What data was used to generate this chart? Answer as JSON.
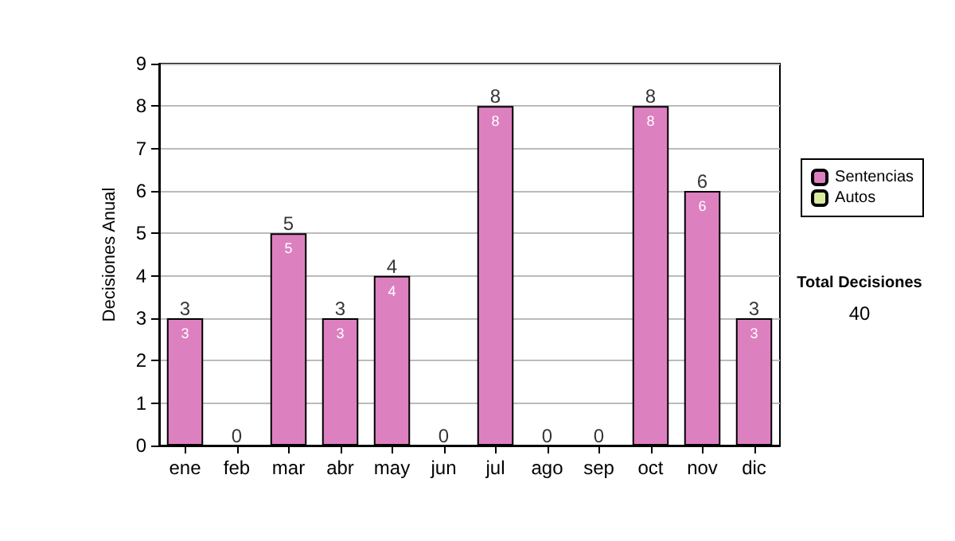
{
  "chart_data": {
    "type": "bar",
    "ylabel": "Decisiones Anual",
    "categories": [
      "ene",
      "feb",
      "mar",
      "abr",
      "may",
      "jun",
      "jul",
      "ago",
      "sep",
      "oct",
      "nov",
      "dic"
    ],
    "series": [
      {
        "name": "Sentencias",
        "color": "#dd80c0",
        "values": [
          3,
          0,
          5,
          3,
          4,
          0,
          8,
          0,
          0,
          8,
          6,
          3
        ],
        "value_labels": [
          "3",
          null,
          "5",
          "3",
          "4",
          null,
          "8",
          null,
          null,
          "8",
          "6",
          "3"
        ]
      },
      {
        "name": "Autos",
        "color": "#d8eca0",
        "values": [
          0,
          0,
          0,
          0,
          0,
          0,
          0,
          0,
          0,
          0,
          0,
          0
        ]
      }
    ],
    "stacked": true,
    "totals": [
      "3",
      "0",
      "5",
      "3",
      "4",
      "0",
      "8",
      "0",
      "0",
      "8",
      "6",
      "3"
    ],
    "ylim": [
      0,
      9
    ],
    "yticks": [
      0,
      1,
      2,
      3,
      4,
      5,
      6,
      7,
      8,
      9
    ],
    "grid": "y",
    "legend": "right",
    "annotations": [
      "Total Decisiones",
      "40"
    ]
  }
}
